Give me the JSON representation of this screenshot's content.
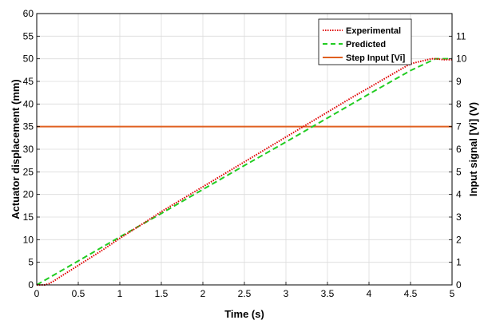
{
  "chart_data": {
    "type": "line",
    "xlabel": "Time (s)",
    "ylabel_left": "Actuator displacement (mm)",
    "ylabel_right": "Input signal [Vi] (V)",
    "xlim": [
      0,
      5
    ],
    "ylim_left": [
      0,
      60
    ],
    "ylim_right": [
      0,
      12
    ],
    "x_ticks": [
      0,
      0.5,
      1,
      1.5,
      2,
      2.5,
      3,
      3.5,
      4,
      4.5,
      5
    ],
    "y_ticks_left": [
      0,
      5,
      10,
      15,
      20,
      25,
      30,
      35,
      40,
      45,
      50,
      55,
      60
    ],
    "y_ticks_right": [
      0,
      1,
      2,
      3,
      4,
      5,
      6,
      7,
      8,
      9,
      10,
      11
    ],
    "grid": true,
    "legend_position": "top-right",
    "series": [
      {
        "name": "Experimental",
        "axis": "left",
        "color": "#e00000",
        "style": "dotted",
        "x": [
          0,
          0.1,
          0.15,
          0.2,
          0.3,
          0.5,
          0.8,
          1.0,
          1.3,
          1.5,
          1.8,
          2.0,
          2.3,
          2.5,
          2.8,
          3.0,
          3.3,
          3.5,
          3.8,
          4.0,
          4.3,
          4.5,
          4.75,
          4.8,
          4.9,
          5.0
        ],
        "y": [
          0,
          0,
          0.3,
          0.8,
          2.0,
          4.3,
          7.8,
          10.3,
          13.8,
          16.2,
          19.5,
          21.7,
          25.0,
          27.2,
          30.5,
          32.7,
          36.0,
          38.2,
          41.5,
          43.6,
          46.8,
          48.9,
          50.0,
          50.0,
          49.8,
          49.8
        ]
      },
      {
        "name": "Predicted",
        "axis": "left",
        "color": "#22cc22",
        "style": "dashed",
        "x": [
          0,
          0.5,
          1.0,
          1.5,
          2.0,
          2.5,
          3.0,
          3.5,
          4.0,
          4.5,
          4.8,
          5.0
        ],
        "y": [
          0,
          5.3,
          10.6,
          15.8,
          21.1,
          26.4,
          31.6,
          36.9,
          42.2,
          47.4,
          50.0,
          50.0
        ]
      },
      {
        "name": "Step Input [Vi]",
        "axis": "right",
        "color": "#e06020",
        "style": "solid",
        "x": [
          0,
          5
        ],
        "y": [
          7,
          7
        ]
      }
    ]
  }
}
